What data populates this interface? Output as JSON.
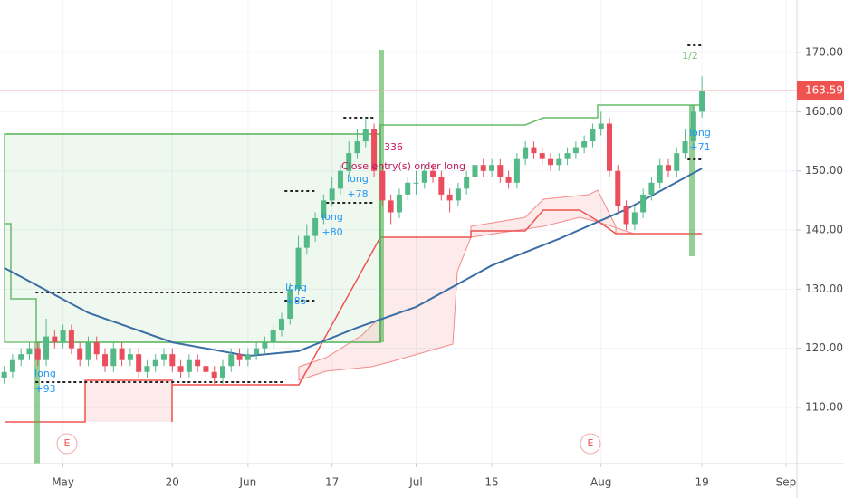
{
  "chart_data": {
    "type": "candlestick",
    "up_color": "#53b987",
    "down_color": "#eb4d5c",
    "open": [
      115,
      116,
      118,
      119,
      120,
      118,
      122,
      121,
      123,
      120,
      118,
      121,
      119,
      117,
      120,
      118,
      119,
      116,
      117,
      118,
      119,
      117,
      116,
      118,
      117,
      116,
      115,
      117,
      119,
      118,
      119,
      120,
      121,
      123,
      125,
      130,
      137,
      139,
      142,
      145,
      147,
      150,
      153,
      155,
      157,
      150,
      145,
      143,
      146,
      148,
      148,
      150,
      149,
      146,
      145,
      147,
      149,
      151,
      150,
      151,
      149,
      148,
      152,
      154,
      153,
      152,
      151,
      152,
      153,
      154,
      155,
      157,
      158,
      150,
      144,
      141,
      143,
      146,
      148,
      151,
      150,
      153,
      155,
      160
    ],
    "high": [
      117,
      119,
      120,
      121,
      121,
      125,
      123,
      124,
      124,
      121,
      122,
      122,
      120,
      121,
      121,
      120,
      120,
      118,
      119,
      120,
      120,
      118,
      119,
      119,
      118,
      117,
      118,
      120,
      120,
      120,
      121,
      122,
      124,
      126,
      131,
      139,
      141,
      143,
      146,
      149,
      151,
      155,
      157,
      159,
      158,
      151,
      146,
      147,
      149,
      150,
      151,
      151,
      150,
      147,
      148,
      150,
      152,
      152,
      152,
      152,
      150,
      153,
      155,
      155,
      154,
      153,
      153,
      154,
      155,
      156,
      158,
      160,
      159,
      151,
      145,
      144,
      147,
      149,
      152,
      152,
      154,
      157,
      161,
      166
    ],
    "low": [
      114,
      115,
      117,
      118,
      117,
      117,
      120,
      120,
      119,
      117,
      117,
      118,
      116,
      116,
      117,
      117,
      115,
      115,
      116,
      117,
      116,
      115,
      115,
      116,
      115,
      114,
      114,
      116,
      117,
      117,
      118,
      119,
      120,
      122,
      124,
      129,
      136,
      138,
      141,
      144,
      146,
      149,
      152,
      154,
      149,
      144,
      141,
      142,
      145,
      146,
      147,
      148,
      145,
      143,
      144,
      146,
      148,
      149,
      149,
      148,
      147,
      147,
      151,
      152,
      151,
      150,
      150,
      151,
      152,
      153,
      154,
      156,
      149,
      143,
      140,
      140,
      142,
      145,
      147,
      149,
      149,
      152,
      154,
      159
    ],
    "close": [
      116,
      118,
      119,
      120,
      118,
      122,
      121,
      123,
      120,
      118,
      121,
      119,
      117,
      120,
      118,
      119,
      116,
      117,
      118,
      119,
      117,
      116,
      118,
      117,
      116,
      115,
      117,
      119,
      118,
      119,
      120,
      121,
      123,
      125,
      130,
      137,
      139,
      142,
      145,
      147,
      150,
      153,
      155,
      157,
      150,
      145,
      143,
      146,
      148,
      148,
      150,
      149,
      146,
      145,
      147,
      149,
      151,
      150,
      151,
      149,
      148,
      152,
      154,
      153,
      152,
      151,
      152,
      153,
      154,
      155,
      157,
      158,
      150,
      144,
      141,
      143,
      146,
      148,
      151,
      150,
      153,
      155,
      160,
      163.59
    ],
    "xlim": [
      -0.5,
      94.3
    ],
    "xticks": [
      {
        "value": 7,
        "label": "May"
      },
      {
        "value": 20,
        "label": "20"
      },
      {
        "value": 29,
        "label": "Jun"
      },
      {
        "value": 39,
        "label": "17"
      },
      {
        "value": 49,
        "label": "Jul"
      },
      {
        "value": 58,
        "label": "15"
      },
      {
        "value": 71,
        "label": "Aug"
      },
      {
        "value": 83,
        "label": "19"
      },
      {
        "value": 93,
        "label": "Sep"
      }
    ],
    "ylim": [
      100.5,
      178.9
    ],
    "yticks": [
      {
        "value": 110,
        "label": "110.00"
      },
      {
        "value": 120,
        "label": "120.00"
      },
      {
        "value": 130,
        "label": "130.00"
      },
      {
        "value": 140,
        "label": "140.00"
      },
      {
        "value": 150,
        "label": "150.00"
      },
      {
        "value": 160,
        "label": "160.00"
      },
      {
        "value": 170,
        "label": "170.00"
      }
    ],
    "grid": true,
    "overlays": [
      {
        "color": "#3b6ea5",
        "x": [
          0,
          10,
          20,
          29,
          35,
          42,
          49,
          58,
          66,
          74,
          83
        ],
        "values": [
          133.6,
          126,
          121,
          118.7,
          119.5,
          123.5,
          127,
          134,
          138.5,
          143.5,
          150.4
        ]
      }
    ],
    "annotations": [
      "long",
      "+93",
      "long",
      "+85",
      "long",
      "+78",
      "long",
      "+80",
      "Close entry(s) order long",
      "336",
      "long",
      "+71",
      "1/2",
      "E",
      "E"
    ]
  }
}
